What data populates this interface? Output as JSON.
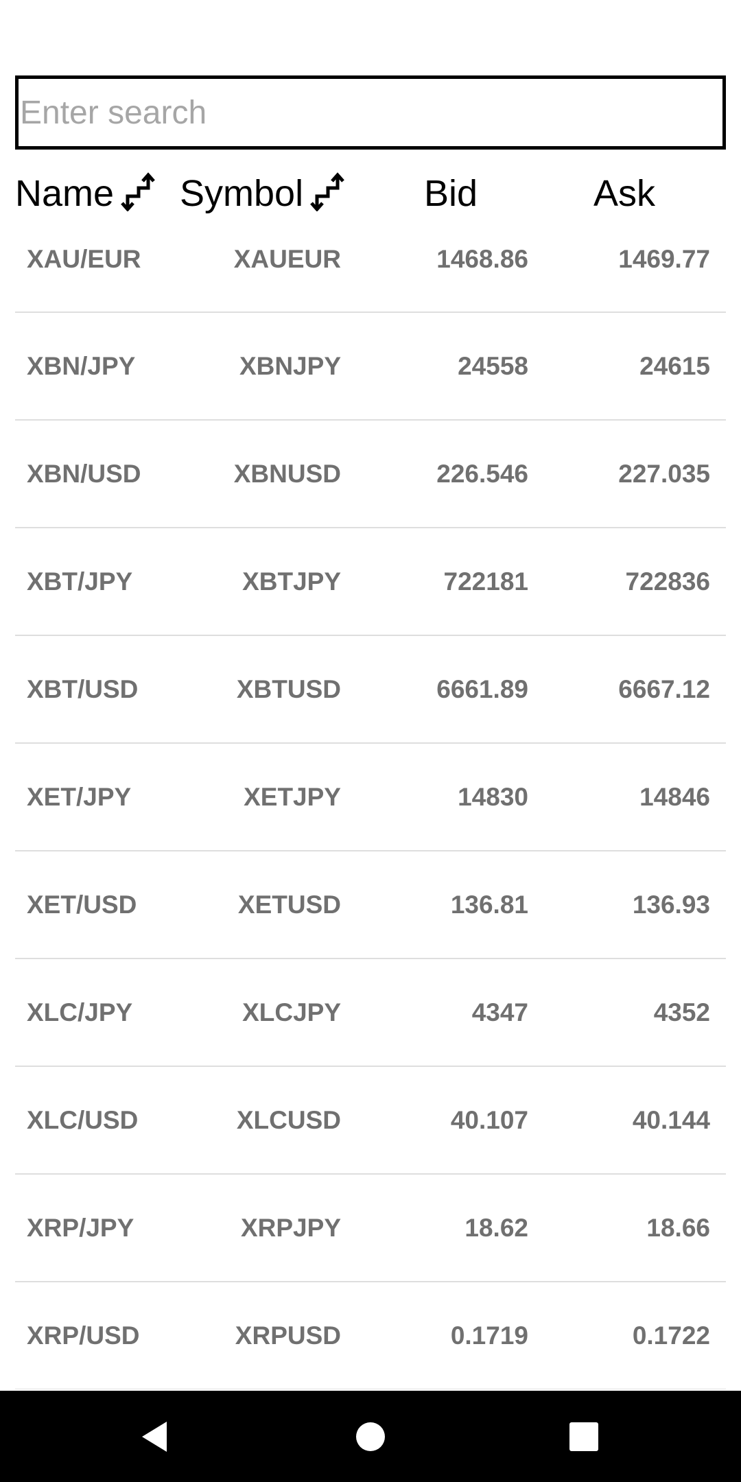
{
  "search": {
    "placeholder": "Enter search",
    "value": ""
  },
  "header": {
    "name_label": "Name",
    "symbol_label": "Symbol",
    "bid_label": "Bid",
    "ask_label": "Ask",
    "sort_icon": "sort-arrows-icon"
  },
  "rows": [
    {
      "name": "XAU/EUR",
      "symbol": "XAUEUR",
      "bid": "1468.86",
      "ask": "1469.77"
    },
    {
      "name": "XBN/JPY",
      "symbol": "XBNJPY",
      "bid": "24558",
      "ask": "24615"
    },
    {
      "name": "XBN/USD",
      "symbol": "XBNUSD",
      "bid": "226.546",
      "ask": "227.035"
    },
    {
      "name": "XBT/JPY",
      "symbol": "XBTJPY",
      "bid": "722181",
      "ask": "722836"
    },
    {
      "name": "XBT/USD",
      "symbol": "XBTUSD",
      "bid": "6661.89",
      "ask": "6667.12"
    },
    {
      "name": "XET/JPY",
      "symbol": "XETJPY",
      "bid": "14830",
      "ask": "14846"
    },
    {
      "name": "XET/USD",
      "symbol": "XETUSD",
      "bid": "136.81",
      "ask": "136.93"
    },
    {
      "name": "XLC/JPY",
      "symbol": "XLCJPY",
      "bid": "4347",
      "ask": "4352"
    },
    {
      "name": "XLC/USD",
      "symbol": "XLCUSD",
      "bid": "40.107",
      "ask": "40.144"
    },
    {
      "name": "XRP/JPY",
      "symbol": "XRPJPY",
      "bid": "18.62",
      "ask": "18.66"
    },
    {
      "name": "XRP/USD",
      "symbol": "XRPUSD",
      "bid": "0.1719",
      "ask": "0.1722"
    }
  ],
  "navigation": {
    "back_icon": "back-triangle-icon",
    "home_icon": "home-circle-icon",
    "recents_icon": "recents-square-icon"
  },
  "colors": {
    "background": "#ffffff",
    "row_text": "#707070",
    "divider": "#dedede",
    "placeholder": "#a6a6a6",
    "nav_bar": "#000000"
  }
}
